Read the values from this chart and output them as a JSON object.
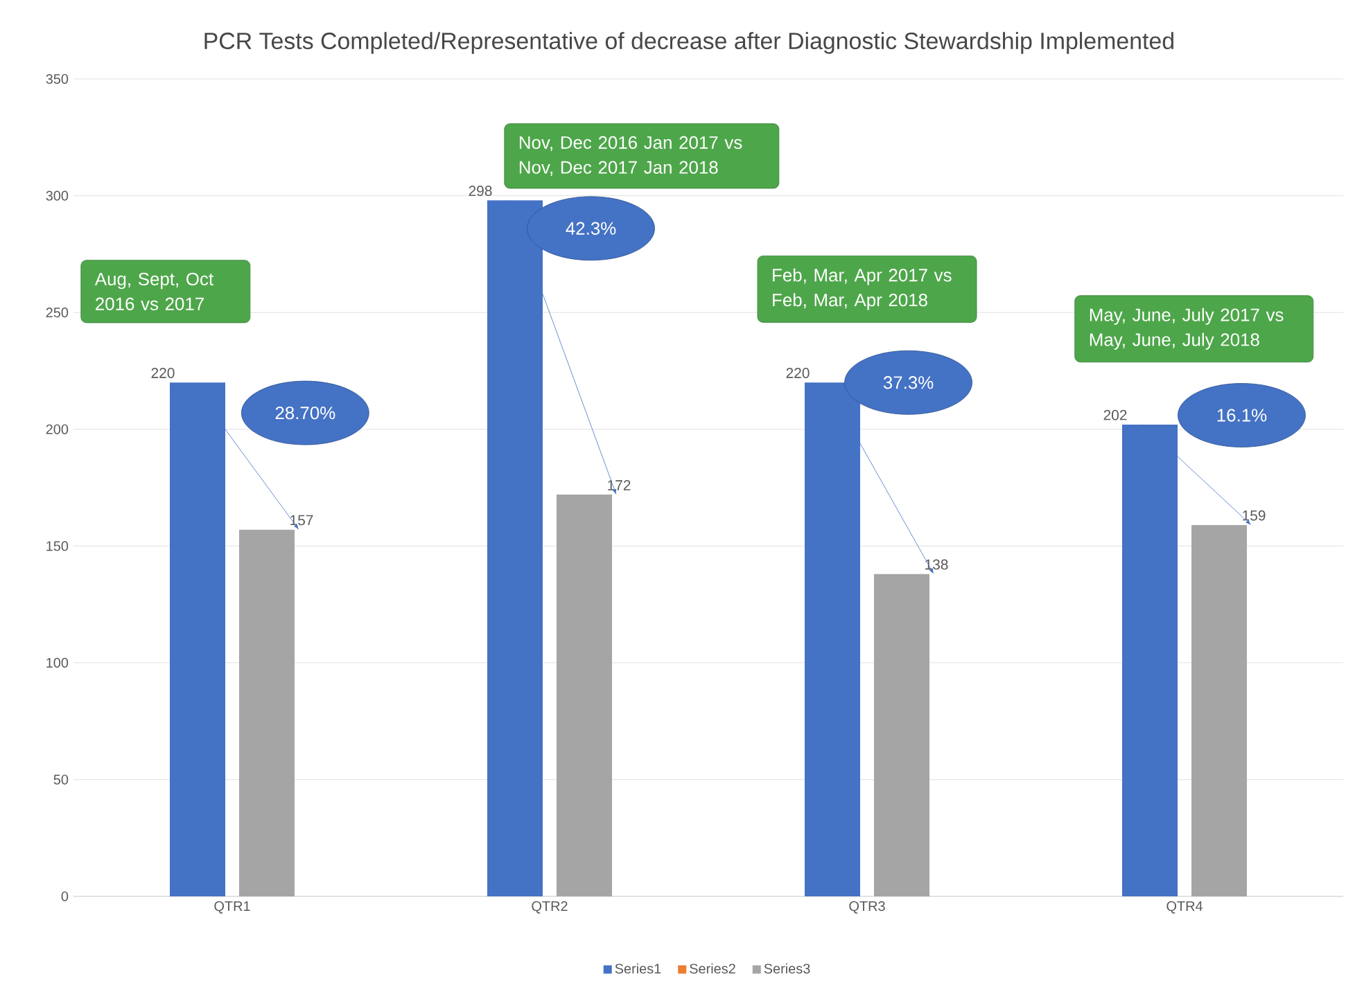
{
  "chart_data": {
    "type": "bar",
    "title": "PCR Tests Completed/Representative of decrease after Diagnostic Stewardship Implemented",
    "categories": [
      "QTR1",
      "QTR2",
      "QTR3",
      "QTR4"
    ],
    "series": [
      {
        "name": "Series1",
        "color": "#4472c4",
        "values": [
          220,
          298,
          220,
          202
        ]
      },
      {
        "name": "Series2",
        "color": "#ed7d31",
        "values": [
          null,
          null,
          null,
          null
        ]
      },
      {
        "name": "Series3",
        "color": "#a5a5a5",
        "values": [
          157,
          172,
          138,
          159
        ]
      }
    ],
    "ylim": [
      0,
      350
    ],
    "yticks": [
      0,
      50,
      100,
      150,
      200,
      250,
      300,
      350
    ],
    "grid": "y",
    "legend": "bottom",
    "data_labels": true,
    "annotations": [
      "Aug, Sept, Oct 2016 vs 2017",
      "28.70%",
      "Nov, Dec 2016 Jan 2017 vs Nov, Dec 2017 Jan 2018",
      "42.3%",
      "Feb, Mar, Apr 2017 vs Feb, Mar, Apr 2018",
      "37.3%",
      "May, June, July 2017 vs May, June, July 2018",
      "16.1%"
    ]
  }
}
